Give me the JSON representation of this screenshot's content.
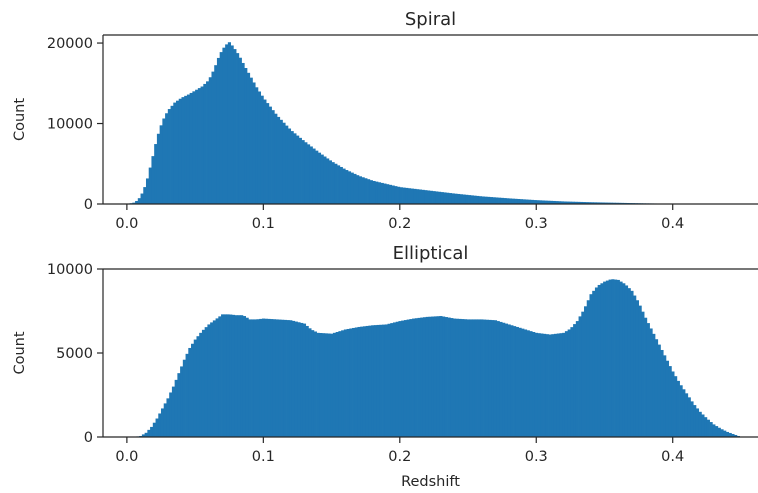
{
  "chart_data": [
    {
      "type": "histogram",
      "title": "Spiral",
      "xlabel": "",
      "ylabel": "Count",
      "xlim": [
        -0.0175,
        0.4625
      ],
      "ylim": [
        0,
        21000
      ],
      "xticks": [
        0.0,
        0.1,
        0.2,
        0.3,
        0.4
      ],
      "xtick_labels": [
        "0.0",
        "0.1",
        "0.2",
        "0.3",
        "0.4"
      ],
      "yticks": [
        0,
        10000,
        20000
      ],
      "ytick_labels": [
        "0",
        "10000",
        "20000"
      ],
      "bin_width": 0.002,
      "color": "#1f77b4",
      "curve": [
        [
          0.0,
          0
        ],
        [
          0.006,
          200
        ],
        [
          0.01,
          900
        ],
        [
          0.014,
          2500
        ],
        [
          0.018,
          5200
        ],
        [
          0.022,
          8200
        ],
        [
          0.026,
          10300
        ],
        [
          0.03,
          11600
        ],
        [
          0.035,
          12600
        ],
        [
          0.04,
          13200
        ],
        [
          0.045,
          13600
        ],
        [
          0.05,
          14100
        ],
        [
          0.055,
          14600
        ],
        [
          0.06,
          15400
        ],
        [
          0.064,
          16800
        ],
        [
          0.068,
          18600
        ],
        [
          0.072,
          19700
        ],
        [
          0.075,
          20100
        ],
        [
          0.078,
          19500
        ],
        [
          0.082,
          18500
        ],
        [
          0.086,
          17200
        ],
        [
          0.09,
          16000
        ],
        [
          0.095,
          14500
        ],
        [
          0.1,
          13200
        ],
        [
          0.11,
          11000
        ],
        [
          0.12,
          9200
        ],
        [
          0.13,
          7800
        ],
        [
          0.14,
          6500
        ],
        [
          0.15,
          5300
        ],
        [
          0.16,
          4300
        ],
        [
          0.17,
          3500
        ],
        [
          0.18,
          2900
        ],
        [
          0.19,
          2500
        ],
        [
          0.2,
          2100
        ],
        [
          0.22,
          1700
        ],
        [
          0.24,
          1300
        ],
        [
          0.26,
          950
        ],
        [
          0.28,
          700
        ],
        [
          0.3,
          480
        ],
        [
          0.32,
          320
        ],
        [
          0.34,
          220
        ],
        [
          0.36,
          150
        ],
        [
          0.38,
          80
        ],
        [
          0.4,
          40
        ],
        [
          0.43,
          15
        ],
        [
          0.45,
          0
        ]
      ]
    },
    {
      "type": "histogram",
      "title": "Elliptical",
      "xlabel": "Redshift",
      "ylabel": "Count",
      "xlim": [
        -0.0175,
        0.4625
      ],
      "ylim": [
        0,
        10000
      ],
      "xticks": [
        0.0,
        0.1,
        0.2,
        0.3,
        0.4
      ],
      "xtick_labels": [
        "0.0",
        "0.1",
        "0.2",
        "0.3",
        "0.4"
      ],
      "yticks": [
        0,
        5000,
        10000
      ],
      "ytick_labels": [
        "0",
        "5000",
        "10000"
      ],
      "bin_width": 0.002,
      "color": "#1f77b4",
      "curve": [
        [
          0.005,
          0
        ],
        [
          0.01,
          60
        ],
        [
          0.014,
          250
        ],
        [
          0.018,
          600
        ],
        [
          0.022,
          1100
        ],
        [
          0.026,
          1700
        ],
        [
          0.03,
          2300
        ],
        [
          0.034,
          3000
        ],
        [
          0.038,
          3800
        ],
        [
          0.042,
          4600
        ],
        [
          0.046,
          5300
        ],
        [
          0.05,
          5800
        ],
        [
          0.055,
          6300
        ],
        [
          0.06,
          6700
        ],
        [
          0.065,
          7000
        ],
        [
          0.07,
          7300
        ],
        [
          0.075,
          7300
        ],
        [
          0.08,
          7250
        ],
        [
          0.085,
          7250
        ],
        [
          0.09,
          7000
        ],
        [
          0.095,
          7000
        ],
        [
          0.1,
          7050
        ],
        [
          0.11,
          7000
        ],
        [
          0.12,
          6950
        ],
        [
          0.13,
          6750
        ],
        [
          0.135,
          6400
        ],
        [
          0.14,
          6200
        ],
        [
          0.15,
          6150
        ],
        [
          0.16,
          6400
        ],
        [
          0.17,
          6550
        ],
        [
          0.18,
          6650
        ],
        [
          0.19,
          6700
        ],
        [
          0.2,
          6900
        ],
        [
          0.21,
          7050
        ],
        [
          0.22,
          7150
        ],
        [
          0.23,
          7200
        ],
        [
          0.24,
          7050
        ],
        [
          0.25,
          7000
        ],
        [
          0.26,
          7000
        ],
        [
          0.27,
          6950
        ],
        [
          0.28,
          6700
        ],
        [
          0.29,
          6450
        ],
        [
          0.3,
          6200
        ],
        [
          0.31,
          6100
        ],
        [
          0.32,
          6200
        ],
        [
          0.325,
          6450
        ],
        [
          0.33,
          6900
        ],
        [
          0.335,
          7600
        ],
        [
          0.34,
          8500
        ],
        [
          0.345,
          9000
        ],
        [
          0.35,
          9250
        ],
        [
          0.355,
          9400
        ],
        [
          0.36,
          9350
        ],
        [
          0.365,
          9100
        ],
        [
          0.37,
          8700
        ],
        [
          0.375,
          8000
        ],
        [
          0.38,
          7100
        ],
        [
          0.385,
          6300
        ],
        [
          0.39,
          5500
        ],
        [
          0.395,
          4700
        ],
        [
          0.4,
          3900
        ],
        [
          0.405,
          3200
        ],
        [
          0.41,
          2600
        ],
        [
          0.415,
          2000
        ],
        [
          0.42,
          1500
        ],
        [
          0.425,
          1100
        ],
        [
          0.43,
          750
        ],
        [
          0.435,
          500
        ],
        [
          0.44,
          300
        ],
        [
          0.445,
          150
        ],
        [
          0.45,
          0
        ]
      ]
    }
  ]
}
